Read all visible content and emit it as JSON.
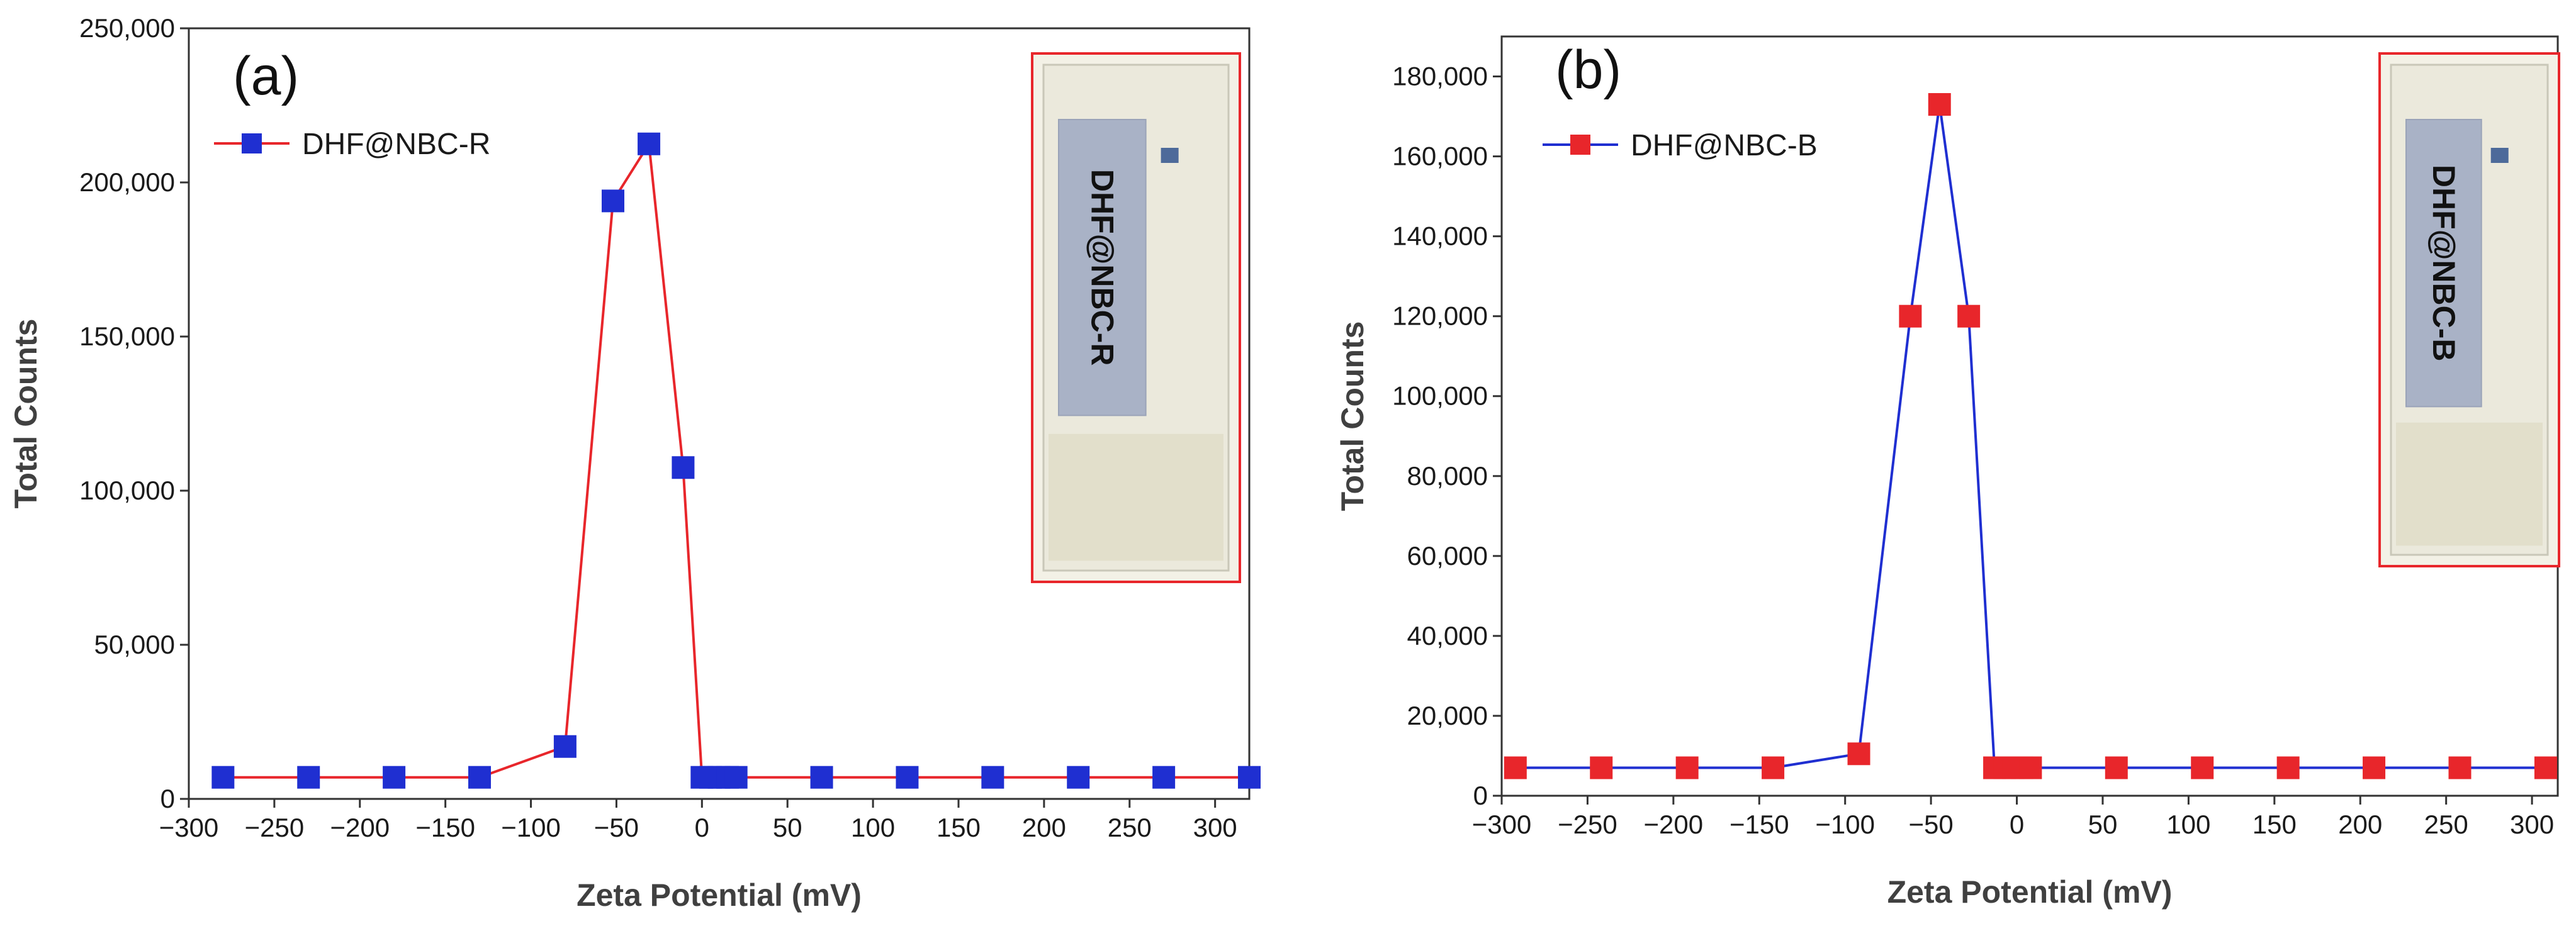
{
  "chart_data": [
    {
      "type": "line",
      "panel_label": "(a)",
      "xlabel": "Zeta Potential (mV)",
      "ylabel": "Total Counts",
      "xlim": [
        -300,
        320
      ],
      "ylim": [
        0,
        250000
      ],
      "xticks": [
        -300,
        -250,
        -200,
        -150,
        -100,
        -50,
        0,
        50,
        100,
        150,
        200,
        250,
        300
      ],
      "xtick_labels": [
        "−300",
        "−250",
        "−200",
        "−150",
        "−100",
        "−50",
        "0",
        "50",
        "100",
        "150",
        "200",
        "250",
        "300"
      ],
      "yticks": [
        0,
        50000,
        100000,
        150000,
        200000,
        250000
      ],
      "ytick_labels": [
        "0",
        "50,000",
        "100,000",
        "150,000",
        "200,000",
        "250,000"
      ],
      "line_color": "#e8262b",
      "marker_color": "#1f2fd1",
      "legend_position": "top-left",
      "grid": false,
      "series": [
        {
          "name": "DHF@NBC-R",
          "x": [
            -280,
            -230,
            -180,
            -130,
            -80,
            -52,
            -31,
            -11,
            0,
            5,
            10,
            15,
            20,
            70,
            120,
            170,
            220,
            270,
            320
          ],
          "y": [
            7000,
            7000,
            7000,
            7000,
            17000,
            194000,
            212500,
            107500,
            7000,
            7000,
            7000,
            7000,
            7000,
            7000,
            7000,
            7000,
            7000,
            7000,
            7000
          ]
        }
      ],
      "inset_label": "DHF@NBC-R"
    },
    {
      "type": "line",
      "panel_label": "(b)",
      "xlabel": "Zeta Potential (mV)",
      "ylabel": "Total Counts",
      "xlim": [
        -300,
        315
      ],
      "ylim": [
        0,
        190000
      ],
      "xticks": [
        -300,
        -250,
        -200,
        -150,
        -100,
        -50,
        0,
        50,
        100,
        150,
        200,
        250,
        300
      ],
      "xtick_labels": [
        "−300",
        "−250",
        "−200",
        "−150",
        "−100",
        "−50",
        "0",
        "50",
        "100",
        "150",
        "200",
        "250",
        "300"
      ],
      "yticks": [
        0,
        20000,
        40000,
        60000,
        80000,
        100000,
        120000,
        140000,
        160000,
        180000
      ],
      "ytick_labels": [
        "0",
        "20,000",
        "40,000",
        "60,000",
        "80,000",
        "100,000",
        "120,000",
        "140,000",
        "160,000",
        "180,000"
      ],
      "line_color": "#1f2fd1",
      "marker_color": "#e8262b",
      "legend_position": "top-left",
      "grid": false,
      "series": [
        {
          "name": "DHF@NBC-B",
          "x": [
            -292,
            -242,
            -192,
            -142,
            -92,
            -62,
            -45,
            -28,
            -13,
            -7,
            -2,
            3,
            8,
            58,
            108,
            158,
            208,
            258,
            308
          ],
          "y": [
            7000,
            7000,
            7000,
            7000,
            10500,
            120000,
            173000,
            120000,
            7000,
            7000,
            7000,
            7000,
            7000,
            7000,
            7000,
            7000,
            7000,
            7000,
            7000
          ]
        }
      ],
      "inset_label": "DHF@NBC-B"
    }
  ]
}
